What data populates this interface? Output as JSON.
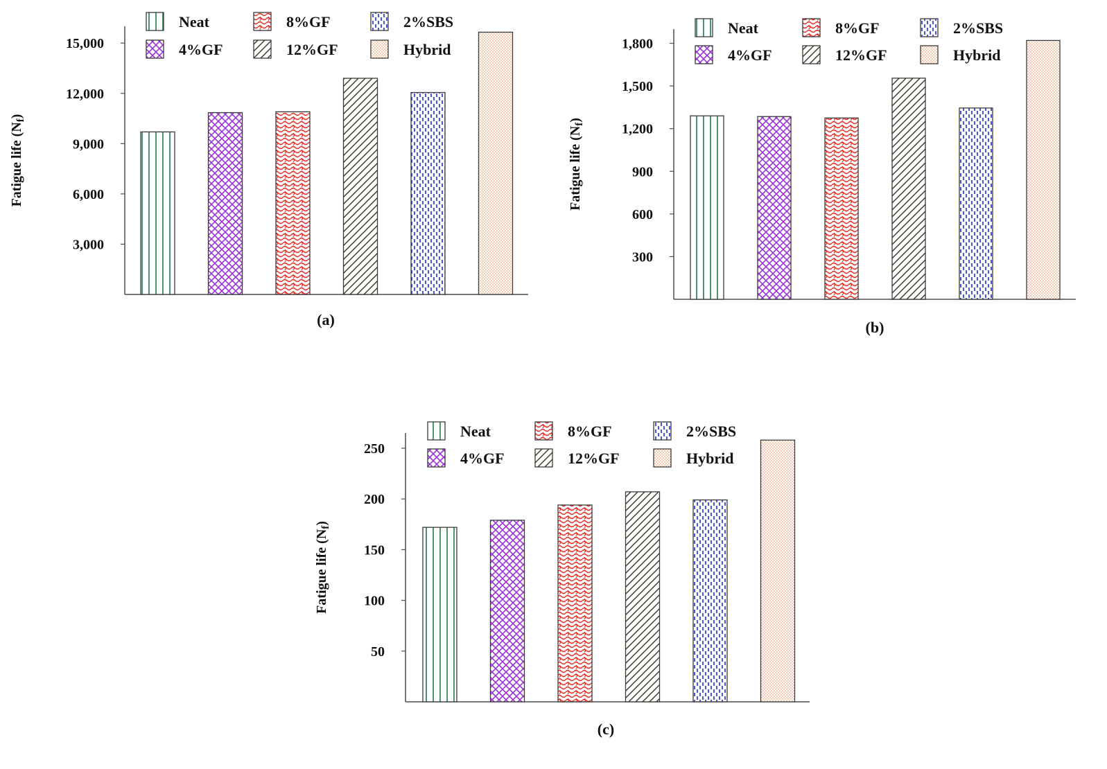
{
  "chart_data": [
    {
      "type": "bar",
      "panel_label": "(a)",
      "ylabel": "Fatigue life (N",
      "ylabel_sub": "f",
      "ylabel_close": ")",
      "categories": [
        "Neat",
        "4%GF",
        "8%GF",
        "12%GF",
        "2%SBS",
        "Hybrid"
      ],
      "values": [
        9700,
        10850,
        10900,
        12900,
        12050,
        15650
      ],
      "ylim": [
        0,
        16000
      ],
      "yticks": [
        3000,
        6000,
        9000,
        12000,
        15000
      ],
      "ytick_labels": [
        "3,000",
        "6,000",
        "9,000",
        "12,000",
        "15,000"
      ],
      "legend": [
        "Neat",
        "8%GF",
        "2%SBS",
        "4%GF",
        "12%GF",
        "Hybrid"
      ],
      "legend_placement": "top",
      "grid": false
    },
    {
      "type": "bar",
      "panel_label": "(b)",
      "ylabel": "Fatigue life (N",
      "ylabel_sub": "f",
      "ylabel_close": ")",
      "categories": [
        "Neat",
        "4%GF",
        "8%GF",
        "12%GF",
        "2%SBS",
        "Hybrid"
      ],
      "values": [
        1290,
        1285,
        1275,
        1555,
        1345,
        1820
      ],
      "ylim": [
        0,
        1900
      ],
      "yticks": [
        300,
        600,
        900,
        1200,
        1500,
        1800
      ],
      "ytick_labels": [
        "300",
        "600",
        "900",
        "1,200",
        "1,500",
        "1,800"
      ],
      "legend": [
        "Neat",
        "8%GF",
        "2%SBS",
        "4%GF",
        "12%GF",
        "Hybrid"
      ],
      "legend_placement": "top",
      "grid": false
    },
    {
      "type": "bar",
      "panel_label": "(c)",
      "ylabel": "Fatigue life (N",
      "ylabel_sub": "f",
      "ylabel_close": ")",
      "categories": [
        "Neat",
        "4%GF",
        "8%GF",
        "12%GF",
        "2%SBS",
        "Hybrid"
      ],
      "values": [
        172,
        179,
        194,
        207,
        199,
        258
      ],
      "ylim": [
        0,
        265
      ],
      "yticks": [
        50,
        100,
        150,
        200,
        250
      ],
      "ytick_labels": [
        "50",
        "100",
        "150",
        "200",
        "250"
      ],
      "legend": [
        "Neat",
        "8%GF",
        "2%SBS",
        "4%GF",
        "12%GF",
        "Hybrid"
      ],
      "legend_placement": "top",
      "grid": false
    }
  ],
  "patterns": {
    "Neat": {
      "icon": "vertical-lines-pattern",
      "color": "#1e7a4a"
    },
    "4%GF": {
      "icon": "crosshatch-pattern",
      "color": "#9b30d9"
    },
    "8%GF": {
      "icon": "wave-pattern",
      "color": "#e8241c"
    },
    "12%GF": {
      "icon": "diagonal-lines-pattern",
      "color": "#3d3d28"
    },
    "2%SBS": {
      "icon": "dashed-vertical-pattern",
      "color": "#1a2bd6"
    },
    "Hybrid": {
      "icon": "dotted-pattern",
      "color": "#e8864a"
    }
  }
}
